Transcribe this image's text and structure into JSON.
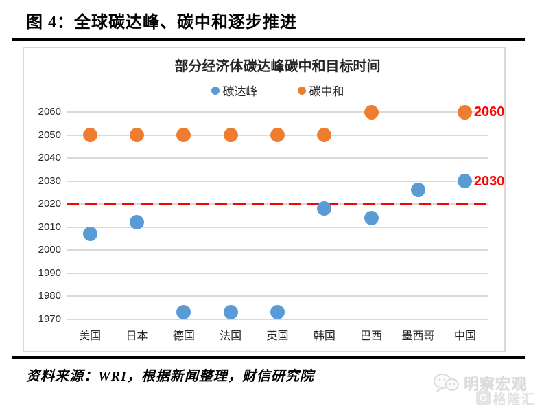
{
  "figure": {
    "title": "图 4：全球碳达峰、碳中和逐步推进"
  },
  "source": {
    "text": "资料来源：WRI，根据新闻整理，财信研究院"
  },
  "watermark": {
    "account": "明察宏观",
    "platform": "格隆汇"
  },
  "colors": {
    "peak_series": "#5B9BD5",
    "neutral_series": "#ED7D31",
    "gridline": "#D9D9D9",
    "reference_red": "#FF0000"
  },
  "chart_data": {
    "type": "scatter",
    "title": "部分经济体碳达峰碳中和目标时间",
    "categories": [
      "美国",
      "日本",
      "德国",
      "法国",
      "英国",
      "韩国",
      "巴西",
      "墨西哥",
      "中国"
    ],
    "series": [
      {
        "name": "碳达峰",
        "color": "#5B9BD5",
        "values": [
          2007,
          2012,
          1973,
          1973,
          1973,
          2018,
          2014,
          2026,
          2030
        ]
      },
      {
        "name": "碳中和",
        "color": "#ED7D31",
        "values": [
          2050,
          2050,
          2050,
          2050,
          2050,
          2050,
          2060,
          null,
          2060
        ]
      }
    ],
    "ylim": [
      1970,
      2060
    ],
    "ytick_step": 10,
    "grid": true,
    "legend_position": "top",
    "reference_line": {
      "value": 2020,
      "color": "#FF0000",
      "style": "dashed"
    },
    "annotations": [
      {
        "text": "2060",
        "category": "中国",
        "value": 2060,
        "color": "#FF0000"
      },
      {
        "text": "2030",
        "category": "中国",
        "value": 2030,
        "color": "#FF0000"
      }
    ]
  }
}
